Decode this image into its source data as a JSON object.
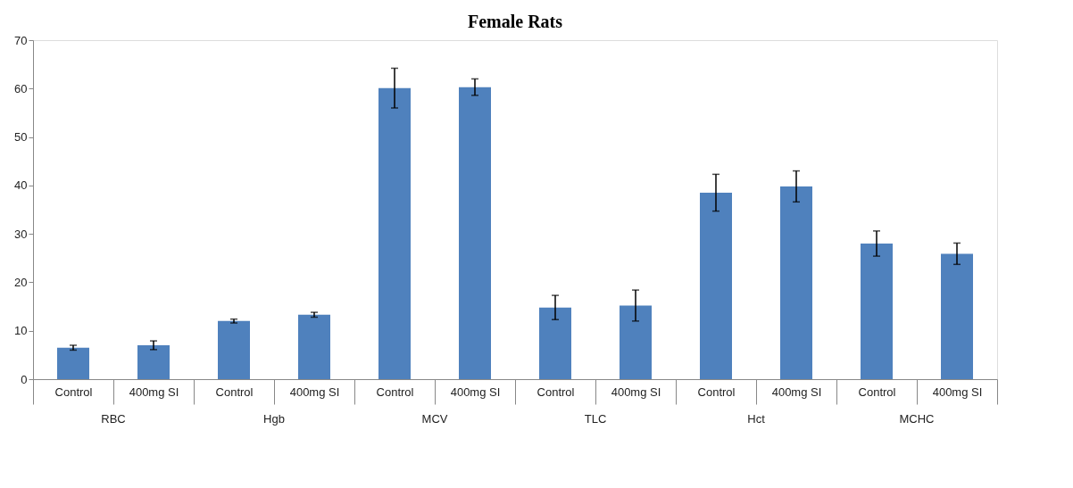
{
  "chart_data": {
    "type": "bar",
    "title": "Female Rats",
    "categories": [
      "Control",
      "400mg SI",
      "Control",
      "400mg SI",
      "Control",
      "400mg SI",
      "Control",
      "400mg SI",
      "Control",
      "400mg SI",
      "Control",
      "400mg SI"
    ],
    "values": [
      6.5,
      7.0,
      12.0,
      13.3,
      60.1,
      60.3,
      14.8,
      15.2,
      38.5,
      39.8,
      28.0,
      25.9
    ],
    "errors": [
      0.5,
      0.9,
      0.4,
      0.5,
      4.1,
      1.7,
      2.5,
      3.2,
      3.8,
      3.2,
      2.6,
      2.2
    ],
    "color": "#4f81bd",
    "ylim": [
      0,
      70
    ],
    "yticks": [
      0,
      10,
      20,
      30,
      40,
      50,
      60,
      70
    ],
    "grid": false,
    "annotations": [
      "RBC",
      "Hgb",
      "MCV",
      "TLC",
      "Hct",
      "MCHC"
    ]
  }
}
